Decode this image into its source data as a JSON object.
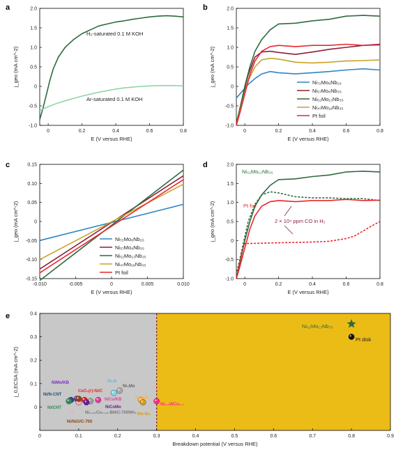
{
  "panels": [
    "a",
    "b",
    "c",
    "d",
    "e"
  ],
  "chart_data": [
    {
      "id": "a",
      "type": "line",
      "xlabel": "E (V versus RHE)",
      "ylabel": "j_geo (mA cm^-2)",
      "xlim": [
        -0.05,
        0.8
      ],
      "ylim": [
        -1.0,
        2.0
      ],
      "xticks": [
        0,
        0.2,
        0.4,
        0.6,
        0.8
      ],
      "yticks": [
        -1.0,
        -0.5,
        0,
        0.5,
        1.0,
        1.5,
        2.0
      ],
      "series": [
        {
          "name": "H2-saturated 0.1 M KOH",
          "color": "#2d6a3e",
          "dash": false,
          "x": [
            -0.05,
            -0.03,
            -0.01,
            0.01,
            0.03,
            0.06,
            0.1,
            0.15,
            0.2,
            0.25,
            0.3,
            0.35,
            0.4,
            0.45,
            0.5,
            0.55,
            0.6,
            0.65,
            0.7,
            0.75,
            0.8
          ],
          "y": [
            -0.85,
            -0.55,
            -0.2,
            0.15,
            0.45,
            0.75,
            1.0,
            1.2,
            1.35,
            1.45,
            1.55,
            1.6,
            1.65,
            1.68,
            1.72,
            1.75,
            1.78,
            1.8,
            1.81,
            1.8,
            1.78
          ]
        },
        {
          "name": "Ar-saturated 0.1 M KOH",
          "color": "#8fd4a8",
          "dash": false,
          "x": [
            -0.05,
            0,
            0.05,
            0.1,
            0.15,
            0.2,
            0.25,
            0.3,
            0.35,
            0.4,
            0.45,
            0.5,
            0.55,
            0.6,
            0.65,
            0.7,
            0.75,
            0.8
          ],
          "y": [
            -0.62,
            -0.52,
            -0.44,
            -0.37,
            -0.31,
            -0.25,
            -0.2,
            -0.15,
            -0.11,
            -0.07,
            -0.04,
            -0.02,
            0.0,
            0.01,
            0.02,
            0.02,
            0.02,
            0.01
          ]
        }
      ],
      "annotations": [
        "H2-saturated 0.1 M KOH",
        "Ar-saturated 0.1 M KOH"
      ]
    },
    {
      "id": "b",
      "type": "line",
      "xlabel": "E (V versus RHE)",
      "ylabel": "j_geo (mA cm^-2)",
      "xlim": [
        -0.05,
        0.8
      ],
      "ylim": [
        -1.0,
        2.0
      ],
      "xticks": [
        0,
        0.2,
        0.4,
        0.6,
        0.8
      ],
      "yticks": [
        -1.0,
        -0.5,
        0,
        0.5,
        1.0,
        1.5,
        2.0
      ],
      "series": [
        {
          "name": "Ni72Mo8Nb20",
          "color": "#2b86c5",
          "x": [
            -0.05,
            -0.02,
            0.02,
            0.06,
            0.1,
            0.15,
            0.2,
            0.3,
            0.4,
            0.5,
            0.6,
            0.7,
            0.8
          ],
          "y": [
            -0.3,
            -0.15,
            0.05,
            0.2,
            0.32,
            0.38,
            0.35,
            0.32,
            0.35,
            0.38,
            0.42,
            0.45,
            0.42
          ]
        },
        {
          "name": "Ni57Mo8Nb35",
          "color": "#8a1e3c",
          "x": [
            -0.05,
            -0.02,
            0.02,
            0.06,
            0.1,
            0.15,
            0.2,
            0.3,
            0.4,
            0.5,
            0.6,
            0.7,
            0.8
          ],
          "y": [
            -0.95,
            -0.4,
            0.3,
            0.75,
            0.88,
            0.9,
            0.87,
            0.82,
            0.88,
            0.95,
            1.0,
            1.05,
            1.08
          ]
        },
        {
          "name": "Ni52Mo13Nb35",
          "color": "#2d6a3e",
          "x": [
            -0.05,
            -0.03,
            0.0,
            0.03,
            0.06,
            0.1,
            0.15,
            0.2,
            0.3,
            0.4,
            0.5,
            0.6,
            0.7,
            0.8
          ],
          "y": [
            -1.0,
            -0.6,
            0.0,
            0.5,
            0.9,
            1.2,
            1.45,
            1.6,
            1.62,
            1.68,
            1.72,
            1.8,
            1.82,
            1.8
          ]
        },
        {
          "name": "Ni47Mo18Nb35",
          "color": "#c9a227",
          "x": [
            -0.05,
            -0.02,
            0.02,
            0.06,
            0.1,
            0.15,
            0.2,
            0.3,
            0.4,
            0.5,
            0.6,
            0.7,
            0.8
          ],
          "y": [
            -1.0,
            -0.5,
            0.15,
            0.5,
            0.68,
            0.72,
            0.7,
            0.62,
            0.6,
            0.62,
            0.65,
            0.66,
            0.68
          ]
        },
        {
          "name": "Pt foil",
          "color": "#e8262c",
          "x": [
            -0.05,
            -0.03,
            0.0,
            0.03,
            0.06,
            0.1,
            0.15,
            0.2,
            0.3,
            0.4,
            0.5,
            0.6,
            0.7,
            0.8
          ],
          "y": [
            -1.0,
            -0.7,
            -0.2,
            0.3,
            0.65,
            0.9,
            1.02,
            1.05,
            1.02,
            1.05,
            1.05,
            1.08,
            1.05,
            1.06
          ]
        }
      ]
    },
    {
      "id": "c",
      "type": "line",
      "xlabel": "E (V versus RHE)",
      "ylabel": "j_geo (mA cm^-2)",
      "xlim": [
        -0.01,
        0.01
      ],
      "ylim": [
        -0.15,
        0.15
      ],
      "xticks": [
        -0.01,
        -0.005,
        0,
        0.005,
        0.01
      ],
      "xticklabels": [
        "-0.010",
        "-0.005",
        "0",
        "0.005",
        "0.010"
      ],
      "yticks": [
        -0.15,
        -0.1,
        -0.05,
        0,
        0.05,
        0.1,
        0.15
      ],
      "yticklabels": [
        "-0.15",
        "-0.10",
        "-0.05",
        "0",
        "0.05",
        "0.10",
        "0.15"
      ],
      "series": [
        {
          "name": "Ni72Mo8Nb20",
          "color": "#2b86c5",
          "x": [
            -0.01,
            0.01
          ],
          "y": [
            -0.05,
            0.045
          ]
        },
        {
          "name": "Ni57Mo8Nb35",
          "color": "#8a1e3c",
          "x": [
            -0.01,
            0.01
          ],
          "y": [
            -0.125,
            0.12
          ]
        },
        {
          "name": "Ni52Mo13Nb35",
          "color": "#2d6a3e",
          "x": [
            -0.01,
            0.01
          ],
          "y": [
            -0.155,
            0.135
          ]
        },
        {
          "name": "Ni47Mo18Nb35",
          "color": "#c9a227",
          "x": [
            -0.01,
            0.01
          ],
          "y": [
            -0.1,
            0.098
          ]
        },
        {
          "name": "Pt foil",
          "color": "#e8262c",
          "x": [
            -0.01,
            0.01
          ],
          "y": [
            -0.135,
            0.11
          ]
        }
      ]
    },
    {
      "id": "d",
      "type": "line",
      "xlabel": "E (V versus RHE)",
      "ylabel": "j_geo (mA cm^-2)",
      "xlim": [
        -0.05,
        0.8
      ],
      "ylim": [
        -1.0,
        2.0
      ],
      "xticks": [
        0,
        0.2,
        0.4,
        0.6,
        0.8
      ],
      "yticks": [
        -1.0,
        -0.5,
        0,
        0.5,
        1.0,
        1.5,
        2.0
      ],
      "series": [
        {
          "name": "Ni52Mo13Nb35",
          "color": "#2d6a3e",
          "dash": false,
          "x": [
            -0.05,
            -0.03,
            0.0,
            0.03,
            0.06,
            0.1,
            0.15,
            0.2,
            0.3,
            0.4,
            0.5,
            0.6,
            0.7,
            0.8
          ],
          "y": [
            -1.0,
            -0.6,
            0.0,
            0.5,
            0.9,
            1.2,
            1.45,
            1.6,
            1.62,
            1.68,
            1.72,
            1.8,
            1.82,
            1.8
          ]
        },
        {
          "name": "Ni52Mo13Nb35 + CO",
          "color": "#2d6a3e",
          "dash": true,
          "x": [
            -0.05,
            -0.02,
            0.02,
            0.06,
            0.1,
            0.15,
            0.2,
            0.3,
            0.4,
            0.5,
            0.6,
            0.7,
            0.8
          ],
          "y": [
            -0.9,
            -0.3,
            0.5,
            0.95,
            1.2,
            1.28,
            1.25,
            1.15,
            1.12,
            1.12,
            1.1,
            1.1,
            1.05
          ]
        },
        {
          "name": "Pt foil",
          "color": "#e8262c",
          "dash": false,
          "x": [
            -0.05,
            -0.03,
            0.0,
            0.03,
            0.06,
            0.1,
            0.15,
            0.2,
            0.3,
            0.4,
            0.5,
            0.6,
            0.7,
            0.8
          ],
          "y": [
            -1.0,
            -0.7,
            -0.2,
            0.3,
            0.65,
            0.9,
            1.02,
            1.05,
            1.02,
            1.05,
            1.05,
            1.08,
            1.05,
            1.06
          ]
        },
        {
          "name": "Pt foil + CO",
          "color": "#e8262c",
          "dash": true,
          "x": [
            -0.05,
            -0.02,
            0.0,
            0.1,
            0.2,
            0.3,
            0.4,
            0.5,
            0.6,
            0.65,
            0.7,
            0.75,
            0.8
          ],
          "y": [
            -1.0,
            -0.3,
            -0.08,
            -0.07,
            -0.06,
            -0.05,
            -0.04,
            -0.02,
            0.05,
            0.12,
            0.25,
            0.38,
            0.5
          ]
        }
      ],
      "annotations": [
        "Ni52Mo13Nb35",
        "Pt foil",
        "2 × 10^4 ppm CO in H2"
      ]
    },
    {
      "id": "e",
      "type": "scatter",
      "xlabel": "Breakdown potential (V versus RHE)",
      "ylabel": "j_0,ECSA (mA cm^-2)",
      "xlim": [
        0,
        0.9
      ],
      "ylim": [
        -0.1,
        0.4
      ],
      "xticks": [
        0,
        0.1,
        0.2,
        0.3,
        0.4,
        0.5,
        0.6,
        0.7,
        0.8,
        0.9
      ],
      "yticks": [
        0,
        0.1,
        0.2,
        0.3,
        0.4
      ],
      "regions": [
        {
          "from": 0,
          "to": 0.3,
          "color": "#c8c8c8"
        },
        {
          "from": 0.3,
          "to": 0.9,
          "color": "#ecbc16"
        }
      ],
      "threshold": 0.3,
      "points": [
        {
          "name": "Ni52Mo13Nb35",
          "x": 0.8,
          "y": 0.355,
          "color": "#2d6a3e",
          "marker": "star"
        },
        {
          "name": "Pt disk",
          "x": 0.8,
          "y": 0.3,
          "color": "#111111",
          "marker": "circle"
        },
        {
          "name": "Ni/N-CNT",
          "x": 0.08,
          "y": 0.03,
          "color": "#1f4e79",
          "marker": "circle"
        },
        {
          "name": "Ni/CNT",
          "x": 0.075,
          "y": 0.025,
          "color": "#2e8b57",
          "marker": "circle"
        },
        {
          "name": "NiMo/KB",
          "x": 0.095,
          "y": 0.035,
          "color": "#7b2cbf",
          "marker": "circle"
        },
        {
          "name": "CeO2(r)-Ni/C",
          "x": 0.115,
          "y": 0.03,
          "color": "#e8262c",
          "marker": "circle"
        },
        {
          "name": "Ni",
          "x": 0.1,
          "y": 0.02,
          "color": "#f4a6c9",
          "marker": "circle"
        },
        {
          "name": "Ni/NiO/C-700",
          "x": 0.1,
          "y": 0.035,
          "color": "#8b4513",
          "marker": "circle"
        },
        {
          "name": "Ni0.95Cu0.05-BN/C-700NH3",
          "x": 0.13,
          "y": 0.025,
          "color": "#9e9e9e",
          "marker": "circle"
        },
        {
          "name": "NiCu/KB",
          "x": 0.15,
          "y": 0.03,
          "color": "#e040a0",
          "marker": "circle"
        },
        {
          "name": "NiCoMo",
          "x": 0.12,
          "y": 0.02,
          "color": "#6a1b9a",
          "marker": "circle"
        },
        {
          "name": "Ni3N",
          "x": 0.19,
          "y": 0.06,
          "color": "#7fd8e8",
          "marker": "circle"
        },
        {
          "name": "Ni4Mo",
          "x": 0.205,
          "y": 0.07,
          "color": "#aaaaaa",
          "marker": "circle"
        },
        {
          "name": "Ni3N/C",
          "x": 0.26,
          "y": 0.03,
          "color": "#ffb347",
          "marker": "circle"
        },
        {
          "name": "Mo-Ni3",
          "x": 0.265,
          "y": 0.02,
          "color": "#d4a017",
          "marker": "circle"
        },
        {
          "name": "Ni2.6WCu0.4",
          "x": 0.3,
          "y": 0.025,
          "color": "#ff2a8a",
          "marker": "circle"
        }
      ]
    }
  ],
  "labels": {
    "a_h2": "H₂-saturated 0.1 M KOH",
    "a_ar": "Ar-saturated 0.1 M KOH",
    "d_ni": "Ni₅₂Mo₁₃Nb₃₅",
    "d_pt": "Pt foil",
    "d_co": "2 × 10⁴ ppm CO in H₂",
    "e_ni": "Ni₅₂Mo₁₃Nb₃₅",
    "e_pt": "Pt disk",
    "xlabel_e": "Breakdown potential (V versus RHE)"
  },
  "legend": [
    {
      "label": "Ni₇₂Mo₈Nb₂₀",
      "color": "#2b86c5"
    },
    {
      "label": "Ni₅₇Mo₈Nb₃₅",
      "color": "#8a1e3c"
    },
    {
      "label": "Ni₅₂Mo₁₃Nb₃₅",
      "color": "#2d6a3e"
    },
    {
      "label": "Ni₄₇Mo₁₈Nb₃₅",
      "color": "#c9a227"
    },
    {
      "label": "Pt foil",
      "color": "#e8262c"
    }
  ],
  "e_catalyst_labels": [
    {
      "text": "NiMo/KB",
      "color": "#7b2cbf"
    },
    {
      "text": "CeO₂(r)-Ni/C",
      "color": "#e8262c"
    },
    {
      "text": "Ni/N-CNT",
      "color": "#1f4e79"
    },
    {
      "text": "Ni/CNT",
      "color": "#2e8b57"
    },
    {
      "text": "NiCu/KB",
      "color": "#e040a0"
    },
    {
      "text": "NiCoMo",
      "color": "#6a1b9a"
    },
    {
      "text": "Ni₃N",
      "color": "#7fd8e8"
    },
    {
      "text": "Ni₄Mo",
      "color": "#777777"
    },
    {
      "text": "Ni₀.₉₅Cu₀.₀₅-BN/C-700NH₃",
      "color": "#777777"
    },
    {
      "text": "Ni/NiO/C-700",
      "color": "#8b4513"
    },
    {
      "text": "Ni₃N/C",
      "color": "#ffb347"
    },
    {
      "text": "Mo-Ni₃",
      "color": "#d4a017"
    },
    {
      "text": "Ni",
      "color": "#f4a6c9"
    },
    {
      "text": "Ni₂.₆WCu₀.₄",
      "color": "#ff2a8a"
    }
  ]
}
